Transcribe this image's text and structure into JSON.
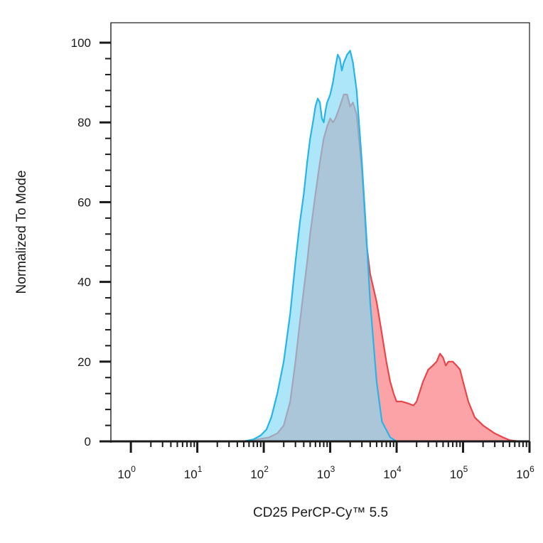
{
  "chart_data": {
    "type": "area",
    "title": "",
    "xlabel": "CD25 PerCP-Cy™ 5.5",
    "ylabel": "Normalized To Mode",
    "x_scale": "log",
    "xlim": [
      0.5,
      1000000
    ],
    "ylim": [
      0,
      105
    ],
    "y_ticks": [
      0,
      20,
      40,
      60,
      80,
      100
    ],
    "x_ticks": [
      {
        "base": "10",
        "exp": "0",
        "value": 1
      },
      {
        "base": "10",
        "exp": "1",
        "value": 10
      },
      {
        "base": "10",
        "exp": "2",
        "value": 100
      },
      {
        "base": "10",
        "exp": "3",
        "value": 1000
      },
      {
        "base": "10",
        "exp": "4",
        "value": 10000
      },
      {
        "base": "10",
        "exp": "5",
        "value": 100000
      },
      {
        "base": "10",
        "exp": "6",
        "value": 1000000
      }
    ],
    "grid": false,
    "legend": "none",
    "series": [
      {
        "fill": "#fba3a6",
        "stroke": "#e8464b",
        "points": [
          [
            0.5,
            0
          ],
          [
            50,
            0
          ],
          [
            80,
            0.5
          ],
          [
            120,
            1
          ],
          [
            160,
            2
          ],
          [
            200,
            4
          ],
          [
            250,
            10
          ],
          [
            300,
            20
          ],
          [
            350,
            30
          ],
          [
            400,
            38
          ],
          [
            450,
            45
          ],
          [
            500,
            52
          ],
          [
            600,
            62
          ],
          [
            700,
            70
          ],
          [
            800,
            76
          ],
          [
            900,
            79
          ],
          [
            1000,
            81
          ],
          [
            1100,
            80
          ],
          [
            1200,
            81
          ],
          [
            1400,
            84
          ],
          [
            1600,
            87
          ],
          [
            1800,
            87
          ],
          [
            2000,
            84
          ],
          [
            2200,
            85
          ],
          [
            2500,
            82
          ],
          [
            3000,
            68
          ],
          [
            3500,
            50
          ],
          [
            4000,
            42
          ],
          [
            5000,
            35
          ],
          [
            6000,
            27
          ],
          [
            7000,
            20
          ],
          [
            8000,
            15
          ],
          [
            9000,
            12
          ],
          [
            10000,
            10
          ],
          [
            12000,
            10
          ],
          [
            15000,
            9.5
          ],
          [
            18000,
            9
          ],
          [
            20000,
            10
          ],
          [
            25000,
            15
          ],
          [
            30000,
            18
          ],
          [
            35000,
            19
          ],
          [
            40000,
            20
          ],
          [
            45000,
            22
          ],
          [
            50000,
            21
          ],
          [
            55000,
            19
          ],
          [
            60000,
            20
          ],
          [
            70000,
            20
          ],
          [
            80000,
            19
          ],
          [
            90000,
            18
          ],
          [
            100000,
            15
          ],
          [
            120000,
            10
          ],
          [
            150000,
            6
          ],
          [
            200000,
            4
          ],
          [
            300000,
            2
          ],
          [
            400000,
            1
          ],
          [
            500000,
            0.3
          ],
          [
            700000,
            0
          ],
          [
            1000000,
            0
          ]
        ]
      },
      {
        "fill": "#7fd8f4",
        "fill_opacity": 0.65,
        "stroke": "#26b5e8",
        "points": [
          [
            0.5,
            0
          ],
          [
            50,
            0
          ],
          [
            70,
            0.5
          ],
          [
            90,
            1.5
          ],
          [
            110,
            3
          ],
          [
            130,
            6
          ],
          [
            160,
            12
          ],
          [
            200,
            20
          ],
          [
            250,
            32
          ],
          [
            300,
            45
          ],
          [
            350,
            55
          ],
          [
            400,
            62
          ],
          [
            450,
            70
          ],
          [
            500,
            76
          ],
          [
            550,
            80
          ],
          [
            600,
            84
          ],
          [
            650,
            86
          ],
          [
            700,
            85
          ],
          [
            750,
            81
          ],
          [
            800,
            80
          ],
          [
            850,
            83
          ],
          [
            900,
            85
          ],
          [
            1000,
            87
          ],
          [
            1100,
            90
          ],
          [
            1200,
            94
          ],
          [
            1300,
            97
          ],
          [
            1400,
            96
          ],
          [
            1500,
            93
          ],
          [
            1600,
            95
          ],
          [
            1800,
            97
          ],
          [
            2000,
            98
          ],
          [
            2200,
            95
          ],
          [
            2500,
            88
          ],
          [
            3000,
            70
          ],
          [
            3500,
            52
          ],
          [
            4000,
            35
          ],
          [
            5000,
            15
          ],
          [
            6000,
            5
          ],
          [
            8000,
            1
          ],
          [
            10000,
            0
          ],
          [
            1000000,
            0
          ]
        ]
      }
    ]
  }
}
